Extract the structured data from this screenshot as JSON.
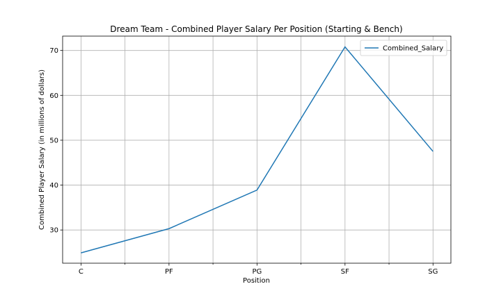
{
  "chart_data": {
    "type": "line",
    "title": "Dream Team - Combined Player Salary Per Position (Starting & Bench)",
    "xlabel": "Position",
    "ylabel": "Combined Player Salary (in millions of dollars)",
    "categories": [
      "C",
      "PF",
      "PG",
      "SF",
      "SG"
    ],
    "series": [
      {
        "name": "Combined_Salary",
        "color": "#1f77b4",
        "values": [
          24.9,
          30.3,
          38.9,
          70.8,
          47.5
        ]
      }
    ],
    "ylim": [
      22.6,
      73.2
    ],
    "yticks": [
      30,
      40,
      50,
      60,
      70
    ],
    "grid": true,
    "legend": "top-right"
  }
}
